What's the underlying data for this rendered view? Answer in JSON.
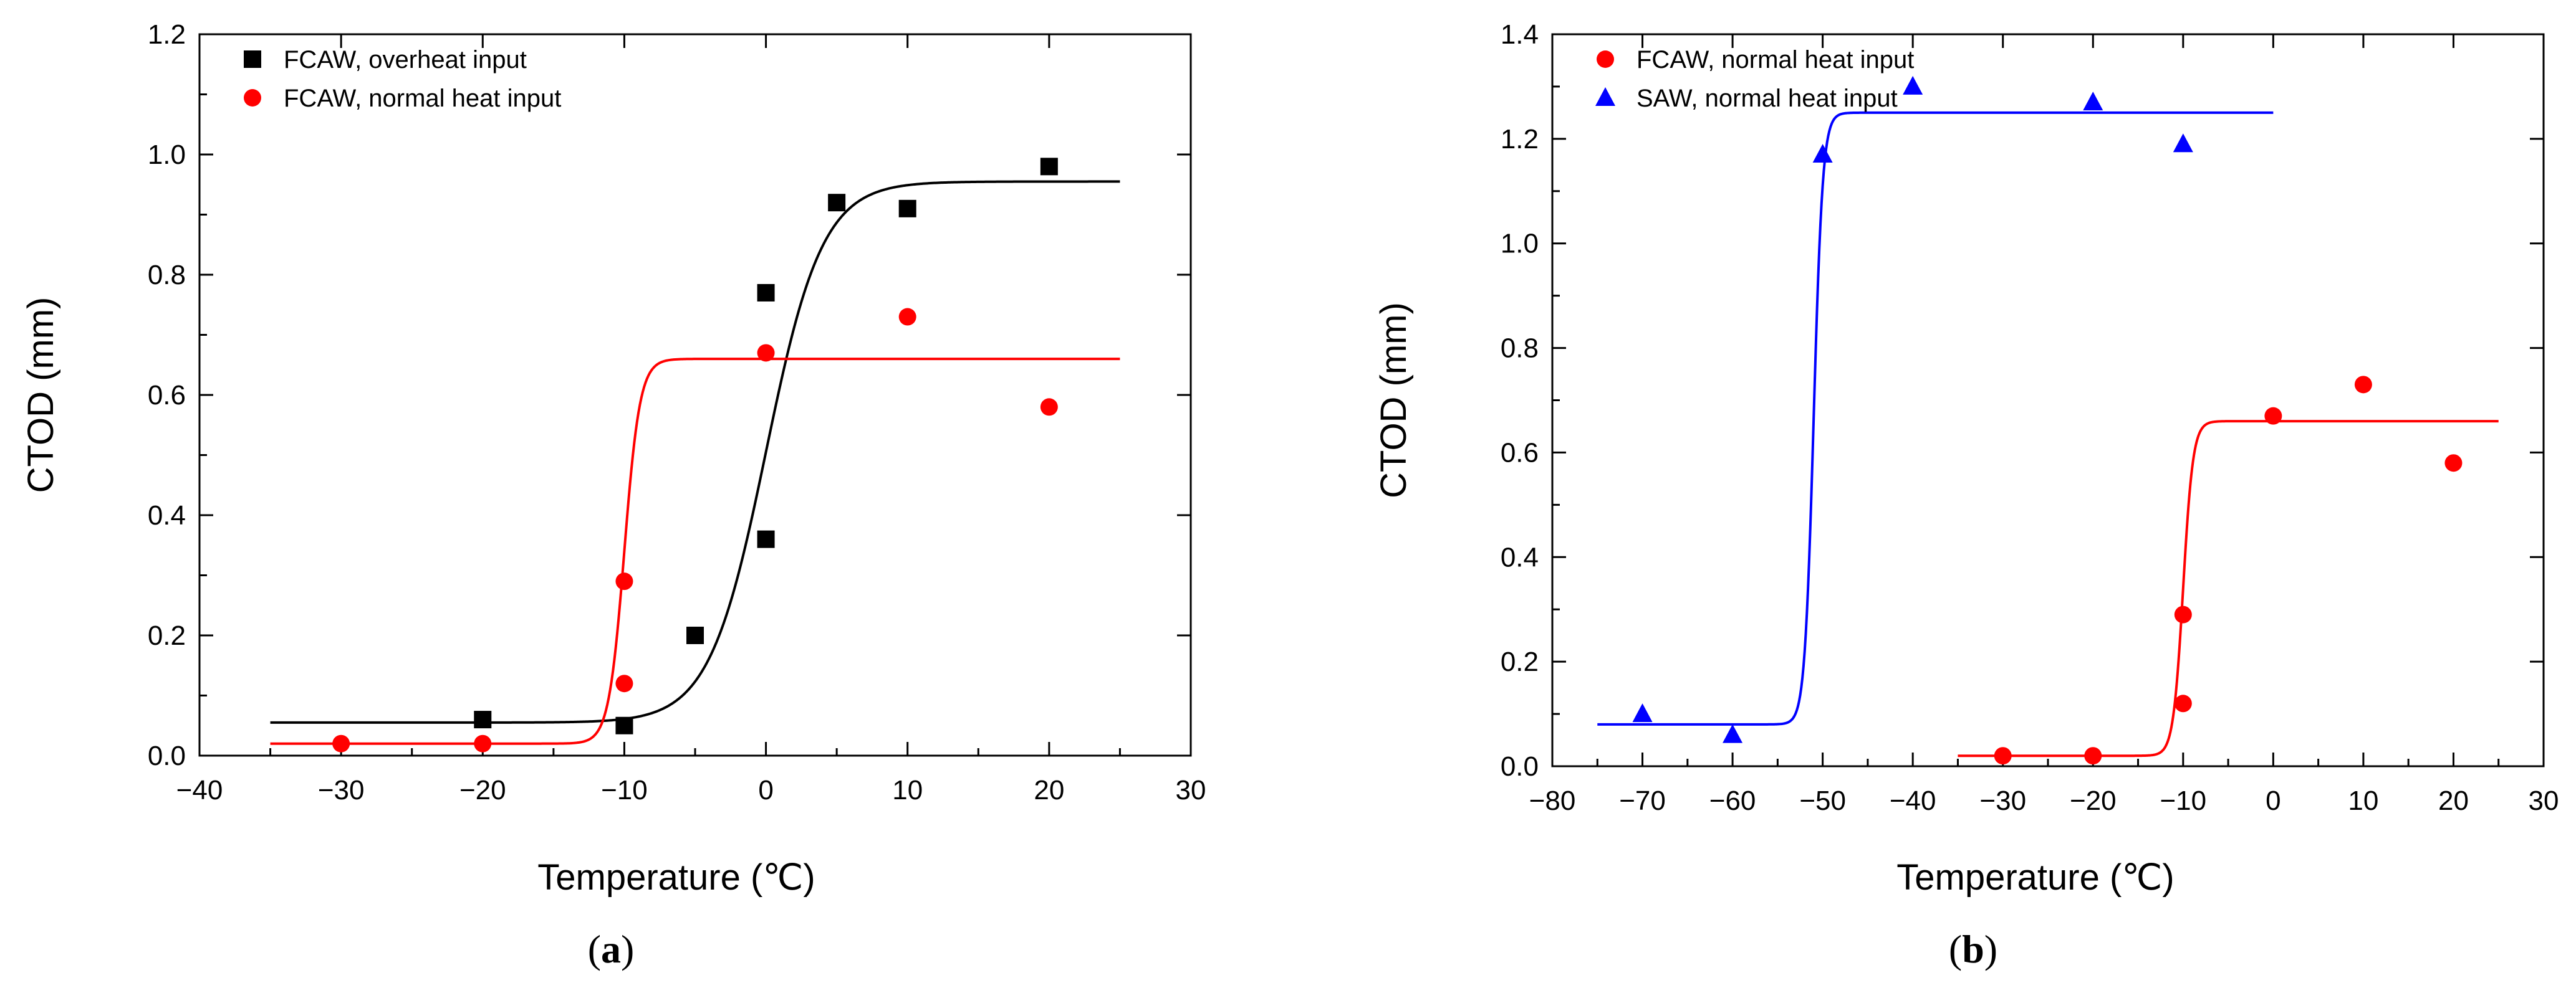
{
  "chart_data": [
    {
      "type": "scatter",
      "panel_label": "a",
      "xlabel": "Temperature (℃)",
      "ylabel": "CTOD (mm)",
      "xlim": [
        -40,
        30
      ],
      "ylim": [
        0.0,
        1.2
      ],
      "xticks": [
        "−40",
        "−30",
        "−20",
        "−10",
        "0",
        "10",
        "20",
        "30"
      ],
      "yticks": [
        "0.0",
        "0.2",
        "0.4",
        "0.6",
        "0.8",
        "1.0",
        "1.2"
      ],
      "legend_position": "top-left",
      "series": [
        {
          "name": "FCAW, overheat input",
          "marker": "square",
          "color": "#000000",
          "points": [
            [
              -20,
              0.06
            ],
            [
              -10,
              0.05
            ],
            [
              -5,
              0.2
            ],
            [
              0,
              0.77
            ],
            [
              0,
              0.36
            ],
            [
              5,
              0.92
            ],
            [
              10,
              0.91
            ],
            [
              20,
              0.98
            ]
          ],
          "fit": {
            "lower": 0.055,
            "upper": 0.955,
            "center": 0.0,
            "width": 2.0,
            "x_range": [
              -35,
              25
            ]
          }
        },
        {
          "name": "FCAW, normal heat input",
          "marker": "circle",
          "color": "#ff0000",
          "points": [
            [
              -30,
              0.02
            ],
            [
              -20,
              0.02
            ],
            [
              -10,
              0.29
            ],
            [
              -10,
              0.12
            ],
            [
              0,
              0.67
            ],
            [
              10,
              0.73
            ],
            [
              20,
              0.58
            ]
          ],
          "fit": {
            "lower": 0.02,
            "upper": 0.66,
            "center": -10.0,
            "width": 0.55,
            "x_range": [
              -35,
              25
            ]
          }
        }
      ]
    },
    {
      "type": "scatter",
      "panel_label": "b",
      "xlabel": "Temperature (℃)",
      "ylabel": "CTOD (mm)",
      "xlim": [
        -80,
        30
      ],
      "ylim": [
        0.0,
        1.4
      ],
      "xticks": [
        "−80",
        "−70",
        "−60",
        "−50",
        "−40",
        "−30",
        "−20",
        "−10",
        "0",
        "10",
        "20",
        "30"
      ],
      "yticks": [
        "0.0",
        "0.2",
        "0.4",
        "0.6",
        "0.8",
        "1.0",
        "1.2",
        "1.4"
      ],
      "legend_position": "top-left",
      "series": [
        {
          "name": "FCAW, normal heat input",
          "marker": "circle",
          "color": "#ff0000",
          "points": [
            [
              -30,
              0.02
            ],
            [
              -20,
              0.02
            ],
            [
              -10,
              0.29
            ],
            [
              -10,
              0.12
            ],
            [
              0,
              0.67
            ],
            [
              10,
              0.73
            ],
            [
              20,
              0.58
            ]
          ],
          "fit": {
            "lower": 0.02,
            "upper": 0.66,
            "center": -10.0,
            "width": 0.55,
            "x_range": [
              -35,
              25
            ]
          }
        },
        {
          "name": "SAW, normal heat input",
          "marker": "triangle",
          "color": "#0000ff",
          "points": [
            [
              -70,
              0.1
            ],
            [
              -60,
              0.06
            ],
            [
              -50,
              1.17
            ],
            [
              -40,
              1.3
            ],
            [
              -20,
              1.27
            ],
            [
              -10,
              1.19
            ]
          ],
          "fit": {
            "lower": 0.08,
            "upper": 1.25,
            "center": -51.0,
            "width": 0.5,
            "x_range": [
              -75,
              0
            ]
          }
        }
      ]
    }
  ]
}
